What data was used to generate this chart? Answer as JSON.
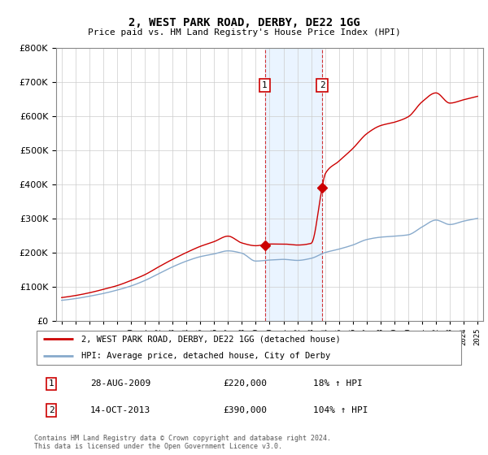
{
  "title": "2, WEST PARK ROAD, DERBY, DE22 1GG",
  "subtitle": "Price paid vs. HM Land Registry's House Price Index (HPI)",
  "legend_property": "2, WEST PARK ROAD, DERBY, DE22 1GG (detached house)",
  "legend_hpi": "HPI: Average price, detached house, City of Derby",
  "footer": "Contains HM Land Registry data © Crown copyright and database right 2024.\nThis data is licensed under the Open Government Licence v3.0.",
  "sale1_label": "1",
  "sale1_date": "28-AUG-2009",
  "sale1_price": "£220,000",
  "sale1_hpi": "18% ↑ HPI",
  "sale1_year": 2009.65,
  "sale1_value": 220000,
  "sale2_label": "2",
  "sale2_date": "14-OCT-2013",
  "sale2_price": "£390,000",
  "sale2_hpi": "104% ↑ HPI",
  "sale2_year": 2013.79,
  "sale2_value": 390000,
  "shade_color": "#ddeeff",
  "shade_alpha": 0.6,
  "property_color": "#cc0000",
  "hpi_color": "#88aacc",
  "ylim": [
    0,
    800000
  ],
  "xlim_start": 1994.6,
  "xlim_end": 2025.4,
  "background_color": "#ffffff",
  "grid_color": "#cccccc"
}
